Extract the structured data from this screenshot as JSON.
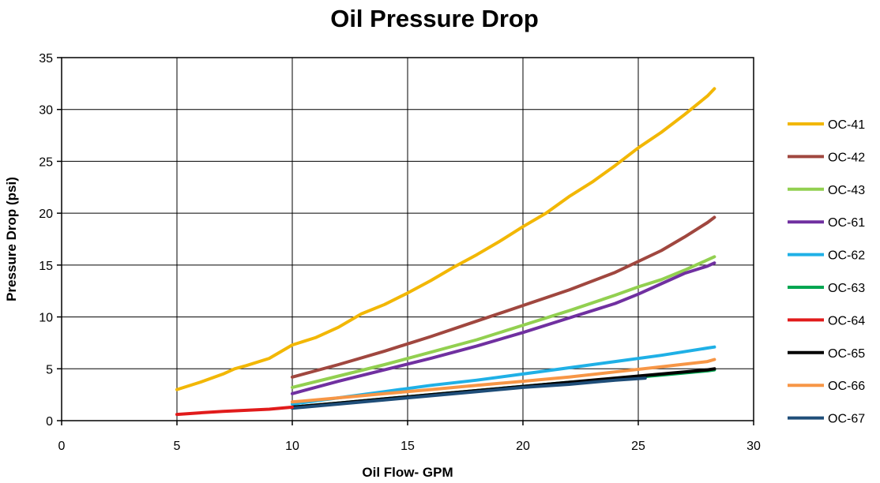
{
  "chart_data": {
    "type": "line",
    "title": "Oil Pressure Drop",
    "xlabel": "Oil Flow- GPM",
    "ylabel": "Pressure Drop (psi)",
    "xlim": [
      0,
      30
    ],
    "ylim": [
      0,
      35
    ],
    "xticks": [
      0,
      5,
      10,
      15,
      20,
      25,
      30
    ],
    "yticks": [
      0,
      5,
      10,
      15,
      20,
      25,
      30,
      35
    ],
    "xtick_labels": [
      "0",
      "5",
      "10",
      "15",
      "20",
      "25",
      "30"
    ],
    "ytick_labels": [
      "0",
      "5",
      "10",
      "15",
      "20",
      "25",
      "30",
      "35"
    ],
    "grid": true,
    "legend_position": "right",
    "series": [
      {
        "name": "OC-41",
        "color": "#F2B705",
        "x": [
          5,
          6,
          7,
          7.5,
          8,
          9,
          10,
          11,
          12,
          13,
          14,
          15,
          16,
          17,
          18,
          19,
          20,
          21,
          22,
          23,
          24,
          25,
          26,
          27,
          28,
          28.3
        ],
        "y": [
          3.0,
          3.7,
          4.5,
          5.0,
          5.3,
          6.0,
          7.3,
          8.0,
          9.0,
          10.3,
          11.2,
          12.3,
          13.5,
          14.8,
          16.0,
          17.3,
          18.7,
          20.0,
          21.6,
          23.0,
          24.6,
          26.3,
          27.8,
          29.5,
          31.3,
          32.0
        ]
      },
      {
        "name": "OC-42",
        "color": "#A0473F",
        "x": [
          10,
          12,
          14,
          16,
          18,
          20,
          22,
          24,
          26,
          27,
          28,
          28.3
        ],
        "y": [
          4.2,
          5.4,
          6.7,
          8.1,
          9.6,
          11.1,
          12.6,
          14.3,
          16.4,
          17.7,
          19.1,
          19.6
        ]
      },
      {
        "name": "OC-43",
        "color": "#92D050",
        "x": [
          10,
          12,
          14,
          16,
          18,
          20,
          22,
          24,
          25,
          26,
          27,
          28,
          28.3
        ],
        "y": [
          3.2,
          4.3,
          5.4,
          6.6,
          7.8,
          9.2,
          10.6,
          12.1,
          12.9,
          13.6,
          14.5,
          15.5,
          15.8
        ]
      },
      {
        "name": "OC-61",
        "color": "#7030A0",
        "x": [
          10,
          12,
          14,
          16,
          18,
          20,
          22,
          24,
          25,
          26,
          27,
          28,
          28.3
        ],
        "y": [
          2.6,
          3.8,
          4.9,
          6.0,
          7.2,
          8.5,
          9.9,
          11.3,
          12.2,
          13.2,
          14.2,
          14.9,
          15.2
        ]
      },
      {
        "name": "OC-62",
        "color": "#1FB0E6",
        "x": [
          10,
          12,
          14,
          16,
          18,
          20,
          22,
          24,
          26,
          28,
          28.3
        ],
        "y": [
          1.6,
          2.2,
          2.8,
          3.4,
          3.9,
          4.5,
          5.1,
          5.7,
          6.3,
          7.0,
          7.1
        ]
      },
      {
        "name": "OC-63",
        "color": "#00A651",
        "x": [
          10,
          12,
          14,
          16,
          18,
          20,
          22,
          24,
          26,
          28,
          28.3
        ],
        "y": [
          1.3,
          1.7,
          2.1,
          2.5,
          2.9,
          3.3,
          3.7,
          4.0,
          4.4,
          4.8,
          4.9
        ]
      },
      {
        "name": "OC-64",
        "color": "#E11B1B",
        "x": [
          5,
          6,
          7,
          8,
          9,
          10
        ],
        "y": [
          0.6,
          0.75,
          0.9,
          1.0,
          1.1,
          1.3
        ]
      },
      {
        "name": "OC-65",
        "color": "#000000",
        "x": [
          10,
          12,
          14,
          16,
          18,
          20,
          22,
          24,
          26,
          28,
          28.3
        ],
        "y": [
          1.3,
          1.7,
          2.1,
          2.5,
          2.9,
          3.3,
          3.7,
          4.1,
          4.5,
          4.9,
          5.0
        ]
      },
      {
        "name": "OC-66",
        "color": "#F79646",
        "x": [
          10,
          12,
          14,
          16,
          18,
          20,
          22,
          24,
          26,
          28,
          28.3
        ],
        "y": [
          1.8,
          2.2,
          2.6,
          3.0,
          3.4,
          3.8,
          4.2,
          4.7,
          5.2,
          5.7,
          5.9
        ]
      },
      {
        "name": "OC-67",
        "color": "#1F4E79",
        "x": [
          10,
          12,
          14,
          16,
          18,
          20,
          22,
          24,
          25.3
        ],
        "y": [
          1.2,
          1.6,
          2.0,
          2.4,
          2.8,
          3.2,
          3.5,
          3.9,
          4.1
        ]
      }
    ]
  }
}
